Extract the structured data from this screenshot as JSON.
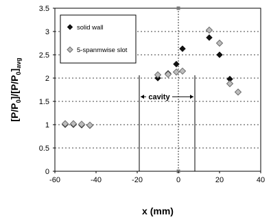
{
  "chart_data": {
    "type": "scatter",
    "xlabel": "x (mm)",
    "ylabel_main": "[P/P",
    "ylabel_sub0": "0",
    "ylabel_mid": "]/[P/P",
    "ylabel_sub1": "0",
    "ylabel_close": "]",
    "ylabel_sub2": "avg",
    "xlim": [
      -60,
      40
    ],
    "ylim": [
      0,
      3.5
    ],
    "xticks": [
      -60,
      -40,
      -20,
      0,
      20,
      40
    ],
    "yticks": [
      0,
      0.5,
      1,
      1.5,
      2,
      2.5,
      3,
      3.5
    ],
    "xtick_labels": [
      "-60",
      "-40",
      "-20",
      "0",
      "20",
      "40"
    ],
    "ytick_labels": [
      "0",
      "0.5",
      "1",
      "1.5",
      "2",
      "2.5",
      "3",
      "3.5"
    ],
    "grid": "horizontal dashed",
    "legend_position": "top-left",
    "series": [
      {
        "name": "solid wall",
        "marker": "diamond",
        "color": "#1a1a1a",
        "points": [
          [
            -55,
            1.0
          ],
          [
            -51,
            1.0
          ],
          [
            -47,
            0.99
          ],
          [
            -43,
            0.98
          ],
          [
            -10,
            2.0
          ],
          [
            -5,
            2.1
          ],
          [
            -1,
            2.3
          ],
          [
            2,
            2.63
          ],
          [
            15,
            2.87
          ],
          [
            20,
            2.5
          ],
          [
            25,
            1.98
          ]
        ]
      },
      {
        "name": "5-spanmwise slot",
        "marker": "diamond-open",
        "color": "#8a8a8a",
        "points": [
          [
            -55,
            1.02
          ],
          [
            -51,
            1.02
          ],
          [
            -47,
            1.01
          ],
          [
            -43,
            0.99
          ],
          [
            -10,
            2.07
          ],
          [
            -5,
            2.08
          ],
          [
            -1,
            2.13
          ],
          [
            2,
            2.15
          ],
          [
            15,
            3.03
          ],
          [
            20,
            2.75
          ],
          [
            25,
            1.88
          ],
          [
            29,
            1.7
          ]
        ]
      }
    ],
    "annotations": {
      "cavity_label": "cavity",
      "cavity_start_x": -19,
      "cavity_end_x": 8,
      "label_y": 1.6
    }
  }
}
